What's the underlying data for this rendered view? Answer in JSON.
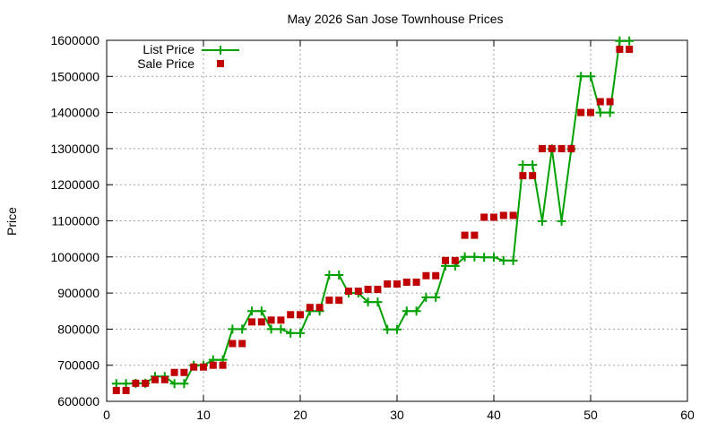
{
  "chart_data": {
    "type": "line",
    "title": "May 2026 San Jose Townhouse Prices",
    "xlabel": "",
    "ylabel": "Price",
    "xlim": [
      0,
      60
    ],
    "ylim": [
      600000,
      1600000
    ],
    "x_ticks": [
      "0",
      "10",
      "20",
      "30",
      "40",
      "50",
      "60"
    ],
    "y_ticks": [
      "600000",
      "700000",
      "800000",
      "900000",
      "1000000",
      "1100000",
      "1200000",
      "1300000",
      "1400000",
      "1500000",
      "1600000"
    ],
    "grid": true,
    "legend_position": "top-left",
    "series": [
      {
        "name": "List Price",
        "style": "line-points",
        "color": "#00a000",
        "x": [
          1,
          2,
          3,
          4,
          5,
          6,
          7,
          8,
          9,
          10,
          11,
          12,
          13,
          14,
          15,
          16,
          17,
          18,
          19,
          20,
          21,
          22,
          23,
          24,
          25,
          26,
          27,
          28,
          29,
          30,
          31,
          32,
          33,
          34,
          35,
          36,
          37,
          38,
          39,
          40,
          41,
          42,
          43,
          44,
          45,
          46,
          47,
          48,
          49,
          50,
          51,
          52,
          53,
          54
        ],
        "values": [
          649000,
          649000,
          650000,
          650000,
          669000,
          669000,
          649000,
          649000,
          700000,
          700000,
          715000,
          715000,
          800000,
          800000,
          850000,
          850000,
          800000,
          800000,
          789000,
          789000,
          850000,
          850000,
          950000,
          950000,
          900000,
          900000,
          875000,
          875000,
          799000,
          799000,
          850000,
          850000,
          888000,
          888000,
          975000,
          975000,
          1000000,
          1000000,
          999000,
          999000,
          990000,
          990000,
          1255000,
          1255000,
          1099000,
          1299000,
          1099000,
          1299000,
          1500000,
          1500000,
          1400000,
          1400000,
          1598000,
          1598000
        ]
      },
      {
        "name": "Sale Price",
        "style": "points",
        "color": "#c00000",
        "x": [
          1,
          2,
          3,
          4,
          5,
          6,
          7,
          8,
          9,
          10,
          11,
          12,
          13,
          14,
          15,
          16,
          17,
          18,
          19,
          20,
          21,
          22,
          23,
          24,
          25,
          26,
          27,
          28,
          29,
          30,
          31,
          32,
          33,
          34,
          35,
          36,
          37,
          38,
          39,
          40,
          41,
          42,
          43,
          44,
          45,
          46,
          47,
          48,
          49,
          50,
          51,
          52,
          53,
          54
        ],
        "values": [
          630000,
          630000,
          650000,
          650000,
          660000,
          660000,
          680000,
          680000,
          695000,
          695000,
          700000,
          700000,
          760000,
          760000,
          820000,
          820000,
          825000,
          825000,
          840000,
          840000,
          860000,
          860000,
          880000,
          880000,
          905000,
          905000,
          910000,
          910000,
          925000,
          925000,
          930000,
          930000,
          948000,
          948000,
          990000,
          990000,
          1060000,
          1060000,
          1110000,
          1110000,
          1115000,
          1115000,
          1225000,
          1225000,
          1300000,
          1300000,
          1300000,
          1300000,
          1400000,
          1400000,
          1430000,
          1430000,
          1575000,
          1575000
        ]
      }
    ]
  }
}
